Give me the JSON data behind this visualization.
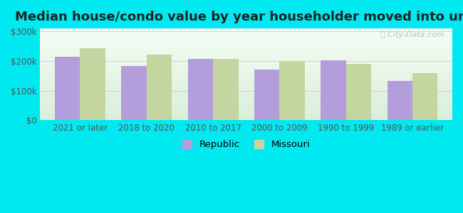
{
  "title": "Median house/condo value by year householder moved into unit",
  "categories": [
    "2021 or later",
    "2018 to 2020",
    "2010 to 2017",
    "2000 to 2009",
    "1990 to 1999",
    "1989 or earlier"
  ],
  "republic_values": [
    215000,
    182000,
    208000,
    170000,
    201000,
    132000
  ],
  "missouri_values": [
    242000,
    222000,
    207000,
    200000,
    190000,
    158000
  ],
  "republic_color": "#b39ddb",
  "missouri_color": "#c5d5a0",
  "background_outer": "#00e8f0",
  "background_inner_bottom": "#daeeda",
  "background_inner_top": "#f5fdf5",
  "yticks": [
    0,
    100000,
    200000,
    300000
  ],
  "ytick_labels": [
    "$0",
    "$100k",
    "$200k",
    "$300k"
  ],
  "ylim": [
    0,
    310000
  ],
  "bar_width": 0.38,
  "legend_republic": "Republic",
  "legend_missouri": "Missouri",
  "title_fontsize": 13,
  "tick_fontsize": 8.5,
  "legend_fontsize": 9.5
}
